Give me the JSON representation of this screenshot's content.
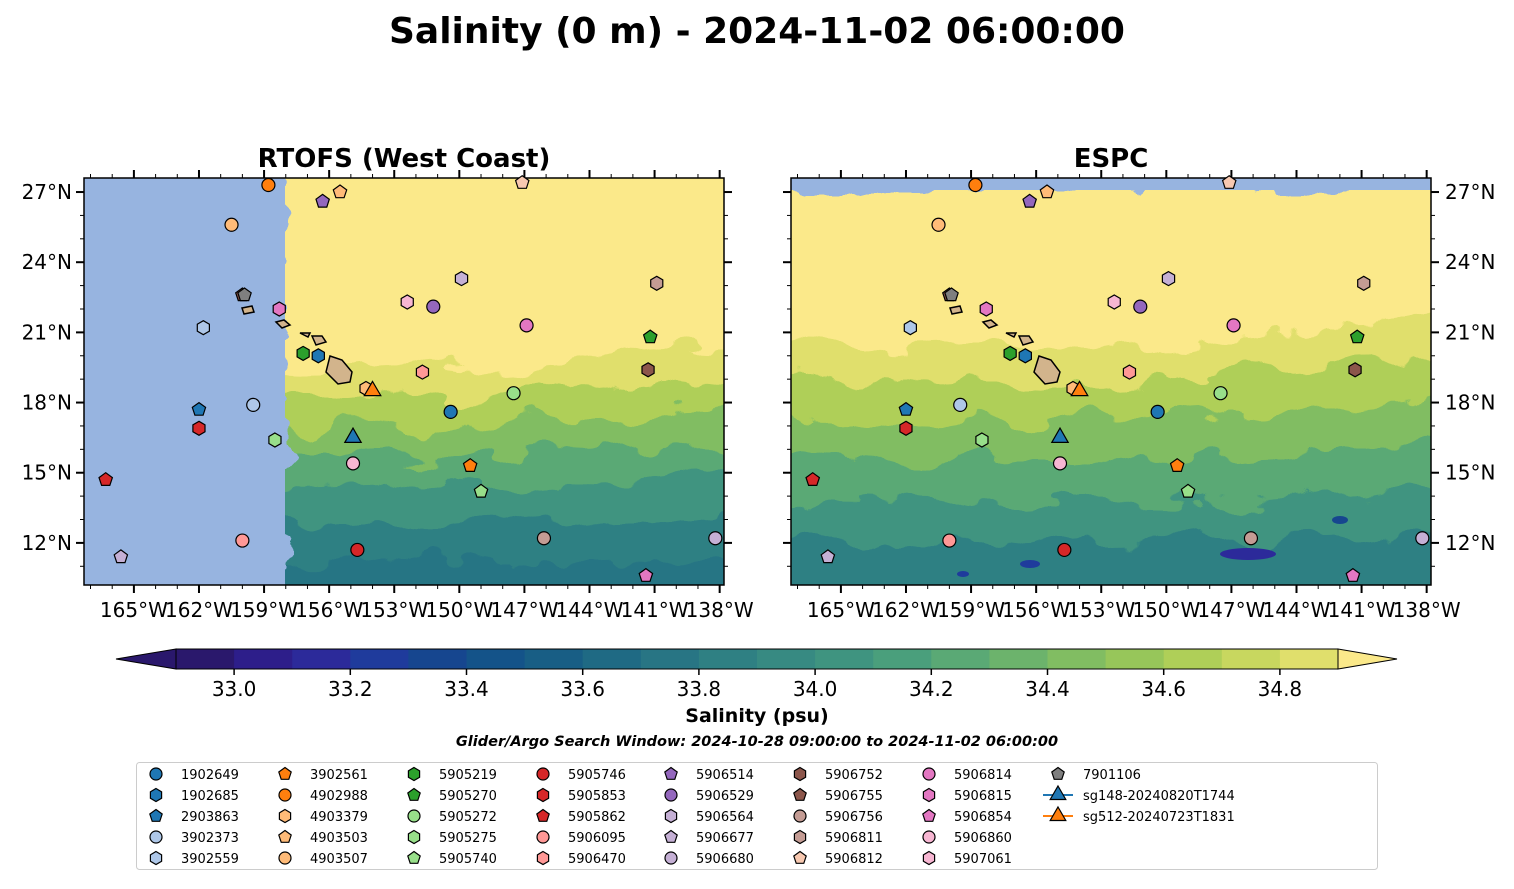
{
  "title": "Salinity (0 m) - 2024-11-02 06:00:00",
  "subtitle": "Glider/Argo Search Window: 2024-10-28 09:00:00 to 2024-11-02 06:00:00",
  "colorbar": {
    "label": "Salinity (psu)",
    "vmin": 32.9,
    "vmax": 34.9,
    "step": 0.1,
    "ticks": [
      33.0,
      33.2,
      33.4,
      33.6,
      33.8,
      34.0,
      34.2,
      34.4,
      34.6,
      34.8
    ],
    "tick_labels": [
      "33.0",
      "33.2",
      "33.4",
      "33.6",
      "33.8",
      "34.0",
      "34.2",
      "34.4",
      "34.6",
      "34.8"
    ],
    "extend": "both",
    "colormap": "haline",
    "colors": [
      "#2a186c",
      "#2d1e8a",
      "#2c2a9a",
      "#1f3b9c",
      "#16468f",
      "#145389",
      "#185e85",
      "#1f6a84",
      "#287584",
      "#2f8083",
      "#378a82",
      "#3f9480",
      "#4a9f7c",
      "#5aa975",
      "#6cb36c",
      "#81bd62",
      "#97c65a",
      "#afcf58",
      "#c8d75f",
      "#e0df6c",
      "#fbe98a"
    ]
  },
  "axes": {
    "x_ticks": [
      -165,
      -162,
      -159,
      -156,
      -153,
      -150,
      -147,
      -144,
      -141,
      -138
    ],
    "x_tick_labels": [
      "165°W",
      "162°W",
      "159°W",
      "156°W",
      "153°W",
      "150°W",
      "147°W",
      "144°W",
      "141°W",
      "138°W"
    ],
    "y_ticks": [
      12,
      15,
      18,
      21,
      24,
      27
    ],
    "y_tick_labels": [
      "12°N",
      "15°N",
      "18°N",
      "21°N",
      "24°N",
      "27°N"
    ],
    "xlim": [
      -167.3,
      -137.8
    ],
    "ylim": [
      10.2,
      27.6
    ]
  },
  "colors": {
    "nodata": "#97b4e0",
    "land": "#d2b48c",
    "high_salinity": "#fbe98a"
  },
  "chart_data": [
    {
      "type": "heatmap",
      "title": "RTOFS (West Coast)",
      "field": "sea surface salinity",
      "data_west_bound_lon": -158.0,
      "fresh_lower_latitudes": true
    },
    {
      "type": "heatmap",
      "title": "ESPC",
      "field": "sea surface salinity",
      "data_north_bound_lat": 27.0,
      "fresh_lower_latitudes": true
    }
  ],
  "platforms": [
    {
      "id": "1902649",
      "color": "#1f77b4",
      "marker": "circle",
      "lon": -150.4,
      "lat": 17.6
    },
    {
      "id": "1902685",
      "color": "#1f77b4",
      "marker": "hexagon",
      "lon": -156.5,
      "lat": 20.0
    },
    {
      "id": "2903863",
      "color": "#1f77b4",
      "marker": "pentagon",
      "lon": -162.0,
      "lat": 17.7
    },
    {
      "id": "3902373",
      "color": "#aec7e8",
      "marker": "circle",
      "lon": -159.5,
      "lat": 17.9
    },
    {
      "id": "3902559",
      "color": "#aec7e8",
      "marker": "hexagon",
      "lon": -161.8,
      "lat": 21.2
    },
    {
      "id": "3902561",
      "color": "#ff7f0e",
      "marker": "pentagon",
      "lon": -149.5,
      "lat": 15.3
    },
    {
      "id": "4902988",
      "color": "#ff7f0e",
      "marker": "circle",
      "lon": -158.8,
      "lat": 27.3
    },
    {
      "id": "4903379",
      "color": "#ffbb78",
      "marker": "hexagon",
      "lon": -154.3,
      "lat": 18.6
    },
    {
      "id": "4903503",
      "color": "#ffbb78",
      "marker": "pentagon",
      "lon": -155.5,
      "lat": 27.0
    },
    {
      "id": "4903507",
      "color": "#ffbb78",
      "marker": "circle",
      "lon": -160.5,
      "lat": 25.6
    },
    {
      "id": "5905219",
      "color": "#2ca02c",
      "marker": "hexagon",
      "lon": -157.2,
      "lat": 20.1
    },
    {
      "id": "5905270",
      "color": "#2ca02c",
      "marker": "pentagon",
      "lon": -141.2,
      "lat": 20.8
    },
    {
      "id": "5905272",
      "color": "#98df8a",
      "marker": "circle",
      "lon": -147.5,
      "lat": 18.4
    },
    {
      "id": "5905275",
      "color": "#98df8a",
      "marker": "hexagon",
      "lon": -158.5,
      "lat": 16.4
    },
    {
      "id": "5905740",
      "color": "#98df8a",
      "marker": "pentagon",
      "lon": -149.0,
      "lat": 14.2
    },
    {
      "id": "5905746",
      "color": "#d62728",
      "marker": "circle",
      "lon": -154.7,
      "lat": 11.7
    },
    {
      "id": "5905853",
      "color": "#d62728",
      "marker": "hexagon",
      "lon": -162.0,
      "lat": 16.9
    },
    {
      "id": "5905862",
      "color": "#d62728",
      "marker": "pentagon",
      "lon": -166.3,
      "lat": 14.7
    },
    {
      "id": "5906095",
      "color": "#ff9896",
      "marker": "circle",
      "lon": -160.0,
      "lat": 12.1
    },
    {
      "id": "5906470",
      "color": "#ff9896",
      "marker": "hexagon",
      "lon": -151.7,
      "lat": 19.3
    },
    {
      "id": "5906514",
      "color": "#9467bd",
      "marker": "pentagon",
      "lon": -156.3,
      "lat": 26.6
    },
    {
      "id": "5906529",
      "color": "#9467bd",
      "marker": "circle",
      "lon": -151.2,
      "lat": 22.1
    },
    {
      "id": "5906564",
      "color": "#c5b0d5",
      "marker": "hexagon",
      "lon": -149.9,
      "lat": 23.3
    },
    {
      "id": "5906677",
      "color": "#c5b0d5",
      "marker": "pentagon",
      "lon": -165.6,
      "lat": 11.4
    },
    {
      "id": "5906680",
      "color": "#c5b0d5",
      "marker": "circle",
      "lon": -138.2,
      "lat": 12.2
    },
    {
      "id": "5906752",
      "color": "#8c564b",
      "marker": "hexagon",
      "lon": -141.3,
      "lat": 19.4
    },
    {
      "id": "5906755",
      "color": "#8c564b",
      "marker": "pentagon",
      "lon": -160.0,
      "lat": 22.6
    },
    {
      "id": "5906756",
      "color": "#c49c94",
      "marker": "circle",
      "lon": -146.1,
      "lat": 12.2
    },
    {
      "id": "5906811",
      "color": "#c49c94",
      "marker": "hexagon",
      "lon": -140.9,
      "lat": 23.1
    },
    {
      "id": "5906812",
      "color": "#f7c8b0",
      "marker": "pentagon",
      "lon": -147.1,
      "lat": 27.4
    },
    {
      "id": "5906814",
      "color": "#e377c2",
      "marker": "circle",
      "lon": -146.9,
      "lat": 21.3
    },
    {
      "id": "5906815",
      "color": "#e377c2",
      "marker": "hexagon",
      "lon": -158.3,
      "lat": 22.0
    },
    {
      "id": "5906854",
      "color": "#e377c2",
      "marker": "pentagon",
      "lon": -141.4,
      "lat": 10.6
    },
    {
      "id": "5906860",
      "color": "#f7b6d2",
      "marker": "circle",
      "lon": -154.9,
      "lat": 15.4
    },
    {
      "id": "5907061",
      "color": "#f7b6d2",
      "marker": "hexagon",
      "lon": -152.4,
      "lat": 22.3
    },
    {
      "id": "7901106",
      "color": "#7f7f7f",
      "marker": "pentagon",
      "lon": -159.9,
      "lat": 22.6
    }
  ],
  "gliders": [
    {
      "id": "sg148-20240820T1744",
      "color": "#1f77b4",
      "marker": "triangle",
      "lon": -154.9,
      "lat": 16.5
    },
    {
      "id": "sg512-20240723T1831",
      "color": "#ff7f0e",
      "marker": "triangle",
      "lon": -154.0,
      "lat": 18.5
    }
  ]
}
